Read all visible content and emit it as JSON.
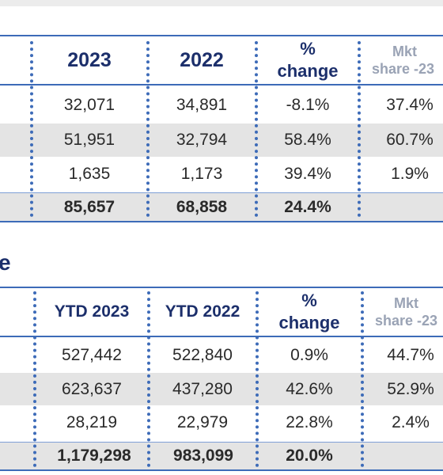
{
  "table1": {
    "headers": {
      "col1": "2023",
      "col2": "2022",
      "col3_line1": "%",
      "col3_line2": "change",
      "col4_line1": "Mkt",
      "col4_line2": "share -23"
    },
    "rows": [
      {
        "v2023": "32,071",
        "v2022": "34,891",
        "change": "-8.1%",
        "share": "37.4%"
      },
      {
        "v2023": "51,951",
        "v2022": "32,794",
        "change": "58.4%",
        "share": "60.7%"
      },
      {
        "v2023": "1,635",
        "v2022": "1,173",
        "change": "39.4%",
        "share": "1.9%"
      }
    ],
    "total": {
      "v2023": "85,657",
      "v2022": "68,858",
      "change": "24.4%",
      "share": ""
    }
  },
  "section2_label": "e",
  "table2": {
    "headers": {
      "col1": "YTD 2023",
      "col2": "YTD 2022",
      "col3_line1": "%",
      "col3_line2": "change",
      "col4_line1": "Mkt",
      "col4_line2": "share -23"
    },
    "rows": [
      {
        "v2023": "527,442",
        "v2022": "522,840",
        "change": "0.9%",
        "share": "44.7%"
      },
      {
        "v2023": "623,637",
        "v2022": "437,280",
        "change": "42.6%",
        "share": "52.9%"
      },
      {
        "v2023": "28,219",
        "v2022": "22,979",
        "change": "22.8%",
        "share": "2.4%"
      }
    ],
    "total": {
      "v2023": "1,179,298",
      "v2022": "983,099",
      "change": "20.0%",
      "share": ""
    }
  }
}
